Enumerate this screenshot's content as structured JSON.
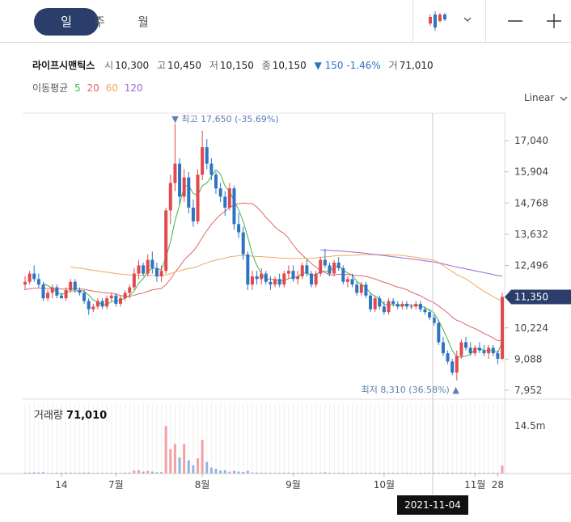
{
  "period_tabs": [
    {
      "label": "일",
      "active": true
    },
    {
      "label": "주",
      "active": false
    },
    {
      "label": "월",
      "active": false
    }
  ],
  "stock": {
    "name": "라이프시맨틱스",
    "open_label": "시",
    "open": "10,300",
    "high_label": "고",
    "high": "10,450",
    "low_label": "저",
    "low": "10,150",
    "close_label": "종",
    "close": "10,150",
    "change": "▼ 150 -1.46%",
    "volume_label": "거",
    "volume": "71,010"
  },
  "ma_legend": {
    "label": "이동평균",
    "items": [
      {
        "name": "5",
        "color": "#3fb34f"
      },
      {
        "name": "20",
        "color": "#e0656a"
      },
      {
        "name": "60",
        "color": "#f0a860"
      },
      {
        "name": "120",
        "color": "#9a6ad6"
      }
    ]
  },
  "scale_toggle": "Linear",
  "crosshair_date": "2021-11-04",
  "colors": {
    "up": "#e04a4f",
    "down": "#2e74c4",
    "price_badge": "#2b3e6b"
  },
  "chart_data": {
    "type": "candlestick",
    "y_ticks": [
      "17,040",
      "15,904",
      "14,768",
      "13,632",
      "12,496",
      "10,224",
      "9,088",
      "7,952"
    ],
    "ylim": [
      7952,
      17500
    ],
    "current_price_label": "11,350",
    "x_tick_labels": [
      "14",
      "7월",
      "8월",
      "9월",
      "10월",
      "11월",
      "28"
    ],
    "max_annotation": "▼ 최고 17,650 (-35.69%)",
    "min_annotation": "최저 8,310 (36.58%) ▲",
    "volume_title": "거래량",
    "volume_value": "71,010",
    "volume_tick": "14.5m",
    "ohlc": [
      [
        11800,
        12100,
        11600,
        11900
      ],
      [
        11900,
        12300,
        11800,
        12200
      ],
      [
        12200,
        12500,
        11900,
        12000
      ],
      [
        12000,
        12200,
        11700,
        11800
      ],
      [
        11800,
        11900,
        11200,
        11300
      ],
      [
        11300,
        11600,
        11200,
        11500
      ],
      [
        11500,
        11800,
        11300,
        11700
      ],
      [
        11700,
        11800,
        11300,
        11400
      ],
      [
        11400,
        11500,
        11300,
        11300
      ],
      [
        11300,
        11700,
        11200,
        11600
      ],
      [
        11600,
        12000,
        11500,
        11900
      ],
      [
        11900,
        12000,
        11500,
        11600
      ],
      [
        11600,
        11700,
        11400,
        11500
      ],
      [
        11500,
        11600,
        11100,
        11200
      ],
      [
        11200,
        11300,
        10700,
        10900
      ],
      [
        10900,
        11100,
        10800,
        11000
      ],
      [
        11000,
        11300,
        10900,
        11200
      ],
      [
        11200,
        11300,
        10900,
        11000
      ],
      [
        11000,
        11400,
        10900,
        11300
      ],
      [
        11300,
        11500,
        11200,
        11400
      ],
      [
        11400,
        11500,
        11000,
        11100
      ],
      [
        11100,
        11400,
        11000,
        11300
      ],
      [
        11300,
        11600,
        11200,
        11500
      ],
      [
        11500,
        11800,
        11300,
        11700
      ],
      [
        11700,
        12400,
        11600,
        12200
      ],
      [
        12200,
        12700,
        12000,
        12500
      ],
      [
        12500,
        12600,
        12100,
        12200
      ],
      [
        12200,
        12900,
        12100,
        12700
      ],
      [
        12700,
        13000,
        12200,
        12400
      ],
      [
        12400,
        12600,
        11900,
        12100
      ],
      [
        12100,
        12500,
        11900,
        12300
      ],
      [
        12300,
        14600,
        12200,
        14500
      ],
      [
        14500,
        15800,
        14000,
        15500
      ],
      [
        15500,
        17650,
        15200,
        16200
      ],
      [
        16200,
        16400,
        14700,
        15000
      ],
      [
        15000,
        16000,
        14800,
        15700
      ],
      [
        15700,
        15900,
        14400,
        14600
      ],
      [
        14600,
        14900,
        13900,
        14100
      ],
      [
        14100,
        16000,
        14000,
        15800
      ],
      [
        15800,
        17400,
        15600,
        16800
      ],
      [
        16800,
        17100,
        16000,
        16200
      ],
      [
        16200,
        16400,
        15600,
        15800
      ],
      [
        15800,
        15900,
        15100,
        15300
      ],
      [
        15300,
        15500,
        14800,
        15000
      ],
      [
        15000,
        15200,
        14300,
        14600
      ],
      [
        14600,
        15500,
        14500,
        15300
      ],
      [
        15300,
        15400,
        13800,
        14000
      ],
      [
        14000,
        14400,
        13500,
        13700
      ],
      [
        13700,
        13900,
        12700,
        12900
      ],
      [
        12900,
        13000,
        11600,
        11800
      ],
      [
        11800,
        12300,
        11600,
        12100
      ],
      [
        12100,
        12300,
        11800,
        12000
      ],
      [
        12000,
        12400,
        11800,
        12200
      ],
      [
        12200,
        12300,
        11800,
        11900
      ],
      [
        11900,
        12100,
        11600,
        11800
      ],
      [
        11800,
        12100,
        11700,
        12000
      ],
      [
        12000,
        12200,
        11700,
        11800
      ],
      [
        11800,
        12300,
        11700,
        12200
      ],
      [
        12200,
        12500,
        12000,
        12300
      ],
      [
        12300,
        12500,
        11900,
        12000
      ],
      [
        12000,
        12300,
        11800,
        12100
      ],
      [
        12100,
        12600,
        12000,
        12500
      ],
      [
        12500,
        12700,
        12100,
        12200
      ],
      [
        12200,
        12300,
        11700,
        11800
      ],
      [
        11800,
        12300,
        11700,
        12200
      ],
      [
        12200,
        12800,
        12100,
        12700
      ],
      [
        12700,
        13100,
        12400,
        12500
      ],
      [
        12500,
        12600,
        12100,
        12200
      ],
      [
        12200,
        12700,
        12100,
        12600
      ],
      [
        12600,
        12800,
        12300,
        12400
      ],
      [
        12400,
        12500,
        11800,
        11900
      ],
      [
        11900,
        12100,
        11700,
        12000
      ],
      [
        12000,
        12200,
        11700,
        11800
      ],
      [
        11800,
        11900,
        11400,
        11500
      ],
      [
        11500,
        11900,
        11400,
        11800
      ],
      [
        11800,
        11900,
        11300,
        11400
      ],
      [
        11400,
        11500,
        10800,
        10900
      ],
      [
        10900,
        11400,
        10800,
        11300
      ],
      [
        11300,
        11400,
        10900,
        11000
      ],
      [
        11000,
        11200,
        10700,
        10800
      ],
      [
        10800,
        11300,
        10700,
        11200
      ],
      [
        11200,
        11300,
        11000,
        11100
      ],
      [
        11100,
        11200,
        10900,
        11000
      ],
      [
        11000,
        11200,
        10900,
        11100
      ],
      [
        11100,
        11200,
        10900,
        11000
      ],
      [
        11000,
        11100,
        10900,
        11000
      ],
      [
        11000,
        11200,
        10900,
        11100
      ],
      [
        11100,
        11200,
        10800,
        10900
      ],
      [
        10900,
        11000,
        10700,
        10800
      ],
      [
        10800,
        10900,
        10500,
        10600
      ],
      [
        10600,
        10700,
        10300,
        10400
      ],
      [
        10400,
        10500,
        9600,
        9700
      ],
      [
        9700,
        9900,
        9200,
        9300
      ],
      [
        9300,
        9400,
        8900,
        9000
      ],
      [
        9000,
        9100,
        8500,
        8600
      ],
      [
        8600,
        9400,
        8310,
        9200
      ],
      [
        9200,
        9800,
        9100,
        9700
      ],
      [
        9700,
        9900,
        9400,
        9500
      ],
      [
        9500,
        9700,
        9200,
        9300
      ],
      [
        9300,
        9600,
        9200,
        9500
      ],
      [
        9500,
        9700,
        9300,
        9400
      ],
      [
        9400,
        9600,
        9200,
        9300
      ],
      [
        9300,
        9600,
        9100,
        9500
      ],
      [
        9500,
        9600,
        9200,
        9300
      ],
      [
        9300,
        9400,
        8900,
        9100
      ],
      [
        9100,
        11500,
        9050,
        11350
      ]
    ],
    "volume_m": [
      0.3,
      0.3,
      0.4,
      0.3,
      0.4,
      0.2,
      0.2,
      0.2,
      0.2,
      0.3,
      0.3,
      0.2,
      0.2,
      0.3,
      0.3,
      0.2,
      0.2,
      0.2,
      0.2,
      0.2,
      0.2,
      0.2,
      0.3,
      0.3,
      0.9,
      1.0,
      0.6,
      0.8,
      0.6,
      0.4,
      0.5,
      14.5,
      7.4,
      9.0,
      4.9,
      9.0,
      4.0,
      2.5,
      4.6,
      10.2,
      3.5,
      1.8,
      1.4,
      0.9,
      1.0,
      0.6,
      0.8,
      0.6,
      0.5,
      0.8,
      0.3,
      0.3,
      0.3,
      0.2,
      0.2,
      0.2,
      0.2,
      0.3,
      0.3,
      0.2,
      0.2,
      0.3,
      0.2,
      0.2,
      0.2,
      0.3,
      0.4,
      0.2,
      0.2,
      0.2,
      0.2,
      0.2,
      0.2,
      0.2,
      0.2,
      0.2,
      0.2,
      0.2,
      0.2,
      0.2,
      0.2,
      0.2,
      0.2,
      0.2,
      0.2,
      0.2,
      0.2,
      0.2,
      0.2,
      0.2,
      0.2,
      0.2,
      0.2,
      0.2,
      0.2,
      0.2,
      0.3,
      0.2,
      0.2,
      0.2,
      0.2,
      0.2,
      0.2,
      0.2,
      0.2,
      2.4
    ],
    "ma_periods": [
      5,
      20,
      60,
      120
    ]
  }
}
